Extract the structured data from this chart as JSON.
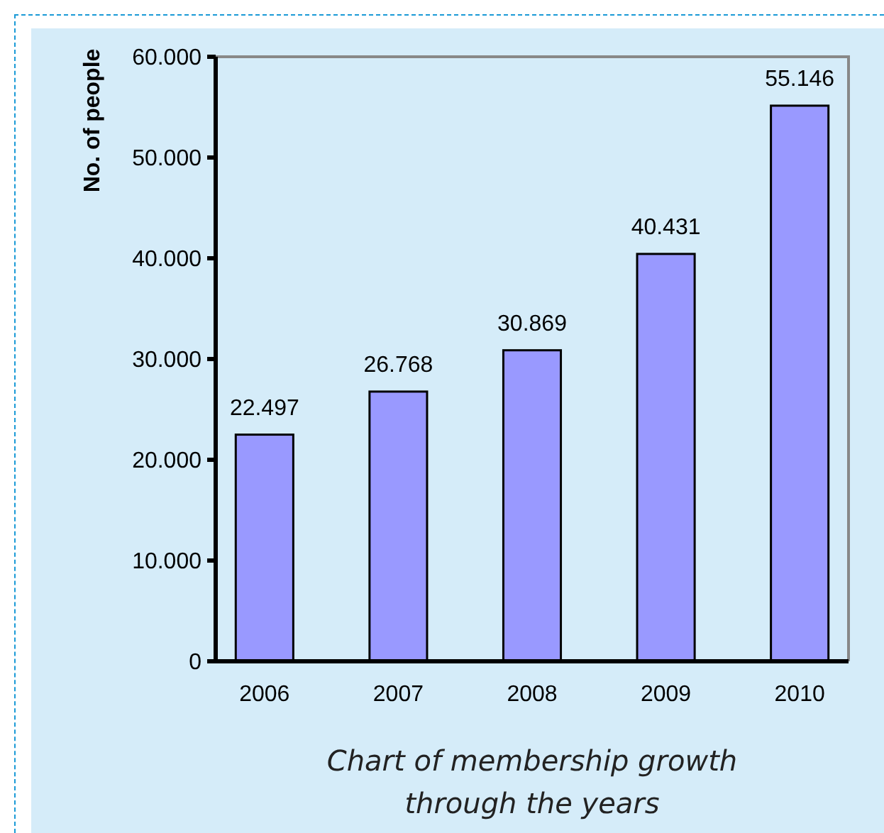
{
  "chart_data": {
    "type": "bar",
    "ylabel": "No. of people",
    "categories": [
      "2006",
      "2007",
      "2008",
      "2009",
      "2010"
    ],
    "values": [
      22497,
      26768,
      30869,
      40431,
      55146
    ],
    "value_labels": [
      "22.497",
      "26.768",
      "30.869",
      "40.431",
      "55.146"
    ],
    "color": "#9999ff",
    "ylim": [
      0,
      60000
    ],
    "yticks": [
      0,
      {
        "value": 10000,
        "label": "10.000"
      },
      {
        "value": 20000,
        "label": "20.000"
      },
      {
        "value": 30000,
        "label": "30.000"
      },
      {
        "value": 40000,
        "label": "40.000"
      },
      {
        "value": 50000,
        "label": "50.000"
      },
      {
        "value": 60000,
        "label": "60.000"
      }
    ],
    "grid": false,
    "annotations": [
      "Chart of membership growth through the years"
    ]
  }
}
